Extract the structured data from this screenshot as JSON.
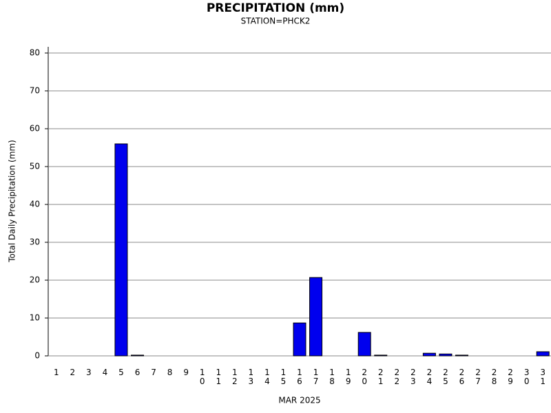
{
  "chart_data": {
    "type": "bar",
    "title": "PRECIPITATION (mm)",
    "subtitle": "STATION=PHCK2",
    "xlabel": "MAR 2025",
    "ylabel": "Total Daily Precipitation (mm)",
    "categories": [
      "1",
      "2",
      "3",
      "4",
      "5",
      "6",
      "7",
      "8",
      "9",
      "10",
      "11",
      "12",
      "13",
      "14",
      "15",
      "16",
      "17",
      "18",
      "19",
      "20",
      "21",
      "22",
      "23",
      "24",
      "25",
      "26",
      "27",
      "28",
      "29",
      "30",
      "31"
    ],
    "values": [
      0,
      0,
      0,
      0,
      56,
      0.2,
      0,
      0,
      0,
      0,
      0,
      0,
      0,
      0,
      0,
      8.7,
      20.7,
      0,
      0,
      6.2,
      0.2,
      0,
      0,
      0.7,
      0.5,
      0.2,
      0,
      0,
      0,
      0,
      1.1
    ],
    "color": "#0000ee",
    "ylim": [
      0,
      80
    ],
    "yticks": [
      0,
      10,
      20,
      30,
      40,
      50,
      60,
      70,
      80
    ],
    "grid": true
  }
}
